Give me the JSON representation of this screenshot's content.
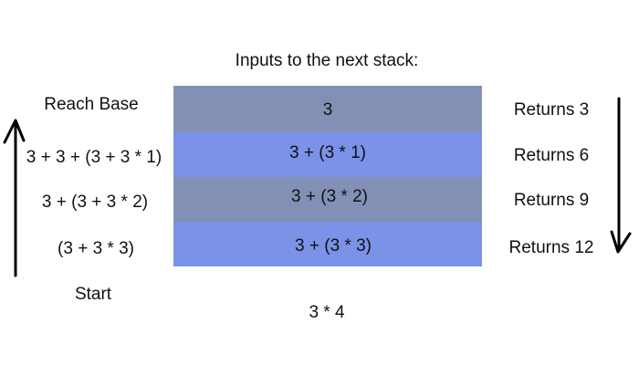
{
  "title": "Inputs to the next stack:",
  "left_labels": {
    "reach_base": "Reach Base",
    "row1": "3 + 3 + (3 + 3 * 1)",
    "row2": "3 + (3 + 3 * 2)",
    "row3": "(3 + 3 * 3)",
    "start": "Start"
  },
  "stack": [
    {
      "label": "3",
      "color": "#8390b5"
    },
    {
      "label": "3 + (3 * 1)",
      "color": "#7a92e8"
    },
    {
      "label": "3 + (3 * 2)",
      "color": "#8390b5"
    },
    {
      "label": "3 + (3 * 3)",
      "color": "#7a92e8"
    }
  ],
  "returns": [
    "Returns 3",
    "Returns 6",
    "Returns 9",
    "Returns 12"
  ],
  "bottom_call": "3 * 4",
  "arrows": {
    "left": "up",
    "right": "down",
    "color": "#000000"
  }
}
